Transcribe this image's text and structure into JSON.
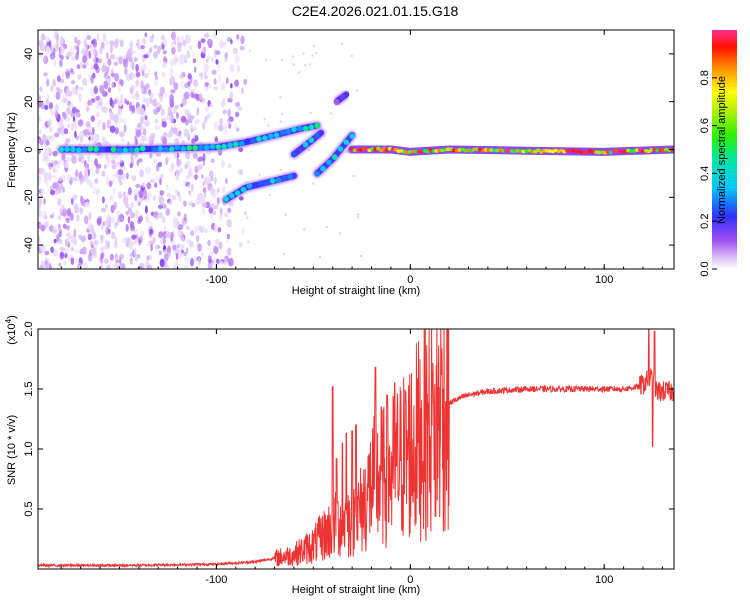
{
  "title": "C2E4.2026.021.01.15.G18",
  "chart_data": [
    {
      "type": "heatmap",
      "title": "C2E4.2026.021.01.15.G18",
      "xlabel": "Height of straight line (km)",
      "ylabel": "Frequency (Hz)",
      "xlim": [
        -192,
        136
      ],
      "ylim": [
        -50,
        50
      ],
      "xticks": [
        -100,
        0,
        100
      ],
      "yticks": [
        -40,
        -20,
        0,
        20,
        40
      ],
      "colorbar": {
        "label": "Normalized spectral amplitude",
        "range": [
          0,
          1
        ],
        "ticks": [
          "0.0",
          "0.2",
          "0.4",
          "0.6",
          "0.8"
        ],
        "tick_values": [
          0,
          0.2,
          0.4,
          0.6,
          0.8
        ]
      },
      "noise_region": {
        "x_range": [
          -192,
          -85
        ],
        "y_range": [
          -50,
          48
        ]
      },
      "tracks": [
        {
          "name": "main-track",
          "points": [
            [
              -180,
              0
            ],
            [
              -150,
              0
            ],
            [
              -120,
              0.5
            ],
            [
              -100,
              1
            ],
            [
              -85,
              3
            ],
            [
              -70,
              6
            ],
            [
              -55,
              9
            ],
            [
              -48,
              10
            ]
          ],
          "amplitude": 0.35
        },
        {
          "name": "lower-branch",
          "points": [
            [
              -95,
              -21
            ],
            [
              -85,
              -16
            ],
            [
              -70,
              -13
            ],
            [
              -60,
              -11
            ]
          ],
          "amplitude": 0.3
        },
        {
          "name": "mid-branch",
          "points": [
            [
              -60,
              -2
            ],
            [
              -52,
              3
            ],
            [
              -46,
              7
            ]
          ],
          "amplitude": 0.3
        },
        {
          "name": "converge-branch",
          "points": [
            [
              -48,
              -10
            ],
            [
              -40,
              -4
            ],
            [
              -35,
              1
            ],
            [
              -30,
              6
            ]
          ],
          "amplitude": 0.35
        },
        {
          "name": "upper-spot",
          "points": [
            [
              -38,
              20
            ],
            [
              -33,
              23
            ]
          ],
          "amplitude": 0.15
        },
        {
          "name": "right-track",
          "points": [
            [
              -30,
              0
            ],
            [
              -10,
              0
            ],
            [
              0,
              -1
            ],
            [
              20,
              0
            ],
            [
              60,
              -0.5
            ],
            [
              100,
              -1
            ],
            [
              136,
              0
            ]
          ],
          "amplitude": 0.75
        }
      ],
      "red_core": {
        "x_range": [
          80,
          95
        ],
        "y": -1
      }
    },
    {
      "type": "line",
      "xlabel": "Height of straight line (km)",
      "ylabel": "SNR (10 * v/v)",
      "scale_label": "(x10",
      "scale_exponent": "4",
      "xlim": [
        -192,
        136
      ],
      "ylim": [
        0,
        2.0
      ],
      "xticks": [
        -100,
        0,
        100
      ],
      "yticks": [
        0.5,
        1.0,
        1.5,
        2.0
      ],
      "ytick_labels": [
        "0.5",
        "1.0",
        "1.5",
        "2.0"
      ],
      "color": "#ee3333",
      "envelope": {
        "x": [
          -192,
          -150,
          -100,
          -80,
          -60,
          -50,
          -40,
          -35,
          -30,
          -25,
          -20,
          -15,
          -10,
          -5,
          0,
          5,
          10,
          15,
          20,
          25,
          30,
          40,
          50,
          60,
          80,
          100,
          110,
          118,
          121,
          124,
          127,
          130,
          136
        ],
        "y": [
          0.03,
          0.03,
          0.04,
          0.06,
          0.12,
          0.2,
          0.35,
          0.4,
          0.4,
          0.5,
          0.7,
          0.75,
          0.8,
          0.9,
          1.0,
          1.1,
          1.2,
          1.3,
          1.38,
          1.42,
          1.45,
          1.48,
          1.49,
          1.5,
          1.5,
          1.5,
          1.5,
          1.52,
          1.55,
          1.6,
          1.48,
          1.48,
          1.48
        ]
      },
      "spikes": [
        {
          "x": -40,
          "y": 1.52
        },
        {
          "x": -38,
          "y": 0.92
        },
        {
          "x": -35,
          "y": 1.05
        },
        {
          "x": -33,
          "y": 1.13
        },
        {
          "x": -30,
          "y": 1.15
        },
        {
          "x": -28,
          "y": 1.2
        },
        {
          "x": -18,
          "y": 1.68
        },
        {
          "x": -15,
          "y": 1.35
        },
        {
          "x": -12,
          "y": 1.45
        },
        {
          "x": -8,
          "y": 1.55
        },
        {
          "x": 12,
          "y": 1.38
        },
        {
          "x": 13,
          "y": 0.44
        },
        {
          "x": 16,
          "y": 1.62
        },
        {
          "x": 123,
          "y": 2.02
        },
        {
          "x": 125,
          "y": 1.02
        },
        {
          "x": 126,
          "y": 1.98
        }
      ]
    }
  ]
}
